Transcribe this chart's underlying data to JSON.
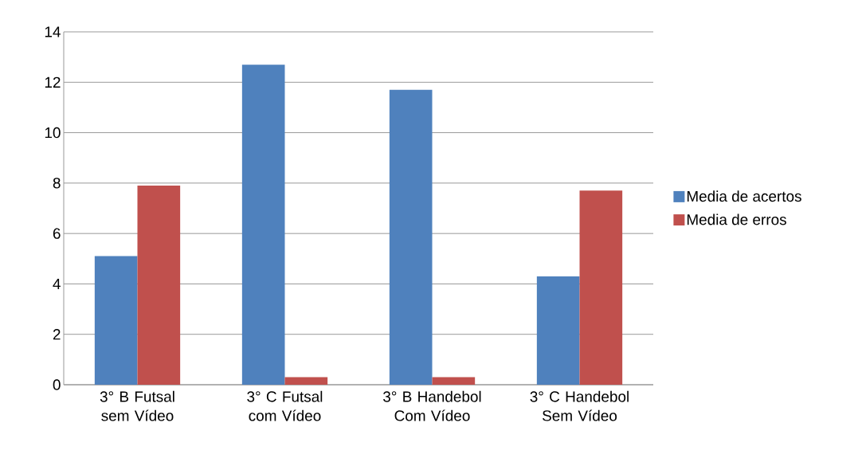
{
  "chart_data": {
    "type": "bar",
    "categories": [
      "3° B Futsal sem Vídeo",
      "3° C Futsal com Vídeo",
      "3° B Handebol Com Vídeo",
      "3° C Handebol Sem Vídeo"
    ],
    "series": [
      {
        "name": "Media de acertos",
        "color": "#4f81bd",
        "values": [
          5.1,
          12.7,
          11.7,
          4.3
        ]
      },
      {
        "name": "Media de erros",
        "color": "#c0504d",
        "values": [
          7.9,
          0.3,
          0.3,
          7.7
        ]
      }
    ],
    "ylim": [
      0,
      14
    ],
    "yticks": [
      0,
      2,
      4,
      6,
      8,
      10,
      12,
      14
    ],
    "grid": "y",
    "legend": "right"
  }
}
